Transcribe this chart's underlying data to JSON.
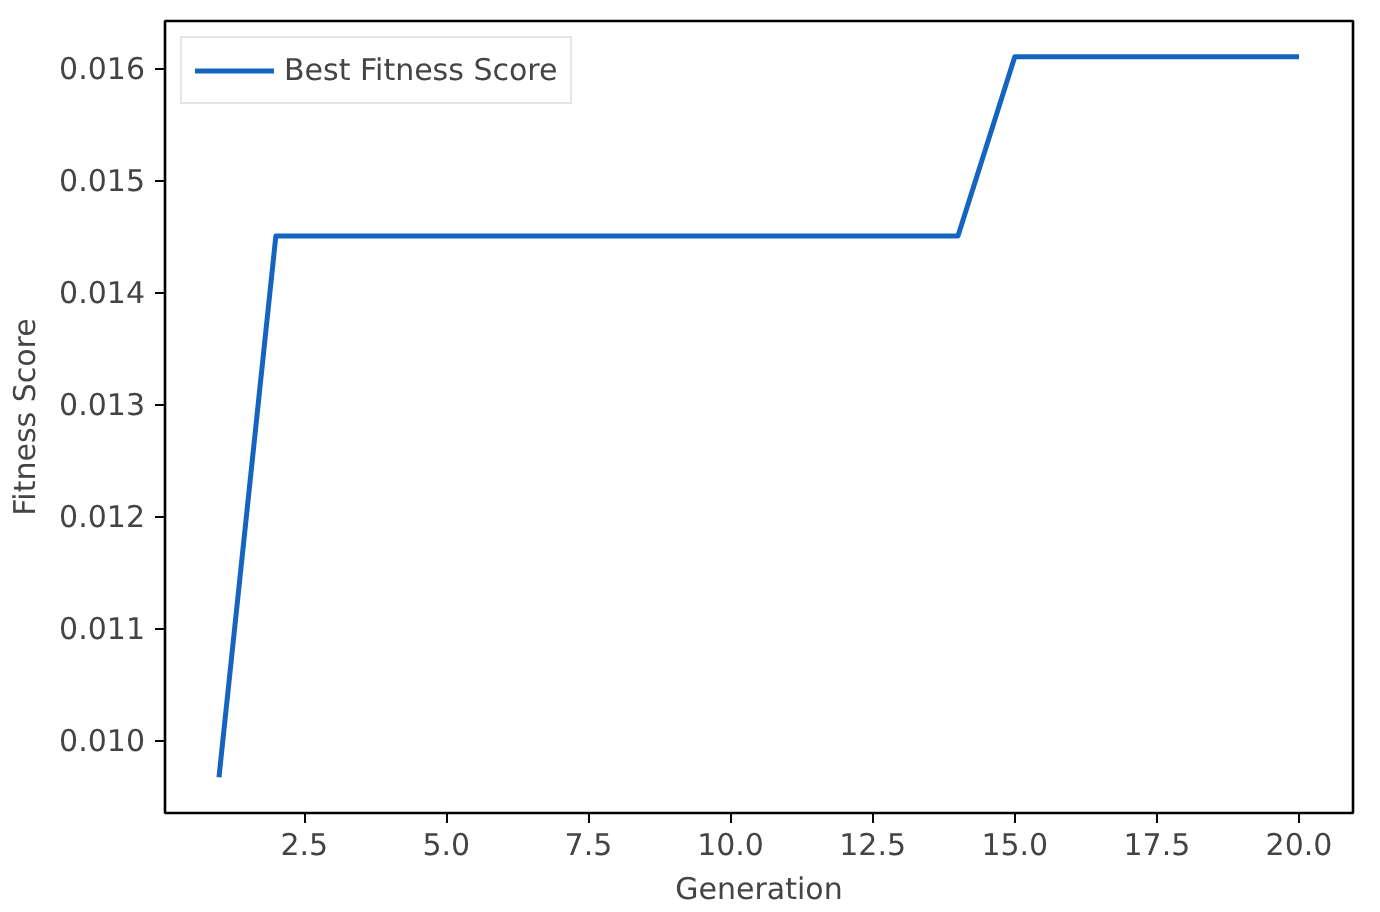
{
  "chart_data": {
    "type": "line",
    "xlabel": "Generation",
    "ylabel": "Fitness Score",
    "x": [
      1,
      2,
      3,
      4,
      5,
      6,
      7,
      8,
      9,
      10,
      11,
      12,
      13,
      14,
      15,
      16,
      17,
      18,
      19,
      20
    ],
    "series": [
      {
        "name": "Best Fitness Score",
        "color": "#1565c0",
        "values": [
          0.00967,
          0.0145,
          0.0145,
          0.0145,
          0.0145,
          0.0145,
          0.0145,
          0.0145,
          0.0145,
          0.0145,
          0.0145,
          0.0145,
          0.0145,
          0.0145,
          0.0161,
          0.0161,
          0.0161,
          0.0161,
          0.0161,
          0.0161
        ]
      }
    ],
    "xlim": [
      0.05,
      20.95
    ],
    "ylim": [
      0.00935,
      0.01642
    ],
    "xticks": [
      {
        "value": 2.5,
        "label": "2.5"
      },
      {
        "value": 5,
        "label": "5.0"
      },
      {
        "value": 7.5,
        "label": "7.5"
      },
      {
        "value": 10,
        "label": "10.0"
      },
      {
        "value": 12.5,
        "label": "12.5"
      },
      {
        "value": 15,
        "label": "15.0"
      },
      {
        "value": 17.5,
        "label": "17.5"
      },
      {
        "value": 20,
        "label": "20.0"
      }
    ],
    "yticks": [
      {
        "value": 0.01,
        "label": "0.010"
      },
      {
        "value": 0.011,
        "label": "0.011"
      },
      {
        "value": 0.012,
        "label": "0.012"
      },
      {
        "value": 0.013,
        "label": "0.013"
      },
      {
        "value": 0.014,
        "label": "0.014"
      },
      {
        "value": 0.015,
        "label": "0.015"
      },
      {
        "value": 0.016,
        "label": "0.016"
      }
    ],
    "grid": false,
    "legend": "top left",
    "marker": "none",
    "line_style": "solid"
  }
}
